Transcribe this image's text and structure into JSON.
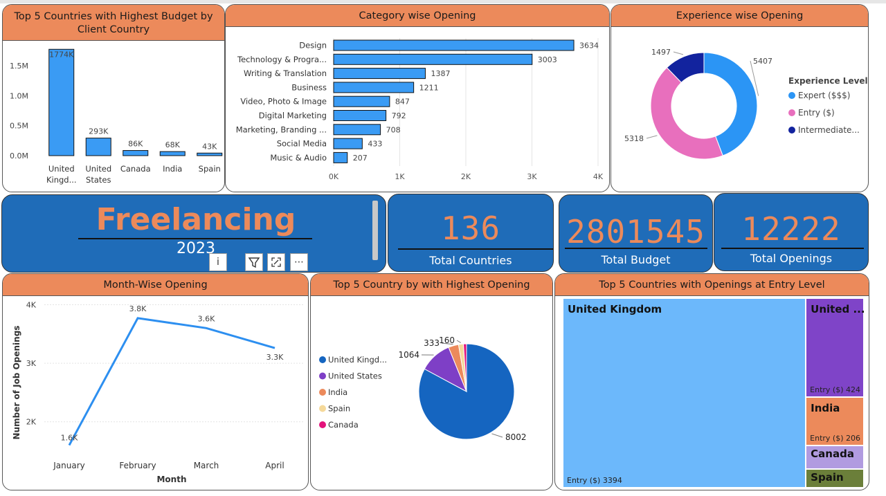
{
  "colors": {
    "header_orange": "#ec8a5b",
    "kpi_blue": "#1f6cb8",
    "bar_blue": "#3a9bf4",
    "expert": "#2b95f5",
    "entry": "#e86fbd",
    "intermediate": "#12239e",
    "line_blue": "#2d8ff0",
    "pie_uk": "#1565c0",
    "pie_us": "#7e3fc6",
    "pie_india": "#ec8a5b",
    "pie_spain": "#f5d99a",
    "pie_canada": "#e3127b",
    "tm_uk": "#6cb8fb",
    "tm_us": "#7f44c8",
    "tm_india": "#ec8a5b",
    "tm_canada": "#b19be0",
    "tm_spain": "#6b7f3a"
  },
  "banner": {
    "title": "Freelancing",
    "year": "2023"
  },
  "toolbar": {
    "info_icon": "info-icon",
    "filter_icon": "filter-icon",
    "focus_icon": "focus-mode-icon",
    "more_icon": "more-options-icon"
  },
  "kpis": {
    "countries": {
      "value": "136",
      "label": "Total Countries"
    },
    "budget": {
      "value": "2801545",
      "label": "Total Budget"
    },
    "openings": {
      "value": "12222",
      "label": "Total Openings"
    }
  },
  "chart_data": [
    {
      "id": "budget",
      "type": "bar",
      "title": "Top 5 Countries with Highest Budget by Client Country",
      "categories": [
        "United Kingd...",
        "United States",
        "Canada",
        "India",
        "Spain"
      ],
      "values": [
        1774000,
        293000,
        86000,
        68000,
        43000
      ],
      "data_labels": [
        "1774K",
        "293K",
        "86K",
        "68K",
        "43K"
      ],
      "y_ticks": [
        0,
        500000,
        1000000,
        1500000
      ],
      "y_tick_labels": [
        "0.0M",
        "0.5M",
        "1.0M",
        "1.5M"
      ],
      "ylim": [
        0,
        1800000
      ],
      "grid": false
    },
    {
      "id": "category",
      "type": "bar",
      "orientation": "horizontal",
      "title": "Category wise Opening",
      "categories": [
        "Design",
        "Technology & Progra...",
        "Writing & Translation",
        "Business",
        "Video, Photo & Image",
        "Digital Marketing",
        "Marketing, Branding ...",
        "Social Media",
        "Music & Audio"
      ],
      "values": [
        3634,
        3003,
        1387,
        1211,
        847,
        792,
        708,
        433,
        207
      ],
      "x_ticks": [
        0,
        1000,
        2000,
        3000,
        4000
      ],
      "x_tick_labels": [
        "0K",
        "1K",
        "2K",
        "3K",
        "4K"
      ],
      "xlim": [
        0,
        4000
      ],
      "grid": true
    },
    {
      "id": "experience",
      "type": "pie",
      "variant": "donut",
      "title": "Experience wise Opening",
      "legend_title": "Experience Level",
      "legend_position": "right",
      "labels": [
        "Expert ($$$)",
        "Entry ($)",
        "Intermediate..."
      ],
      "values": [
        5407,
        5318,
        1497
      ]
    },
    {
      "id": "month",
      "type": "line",
      "title": "Month-Wise Opening",
      "x": [
        "January",
        "February",
        "March",
        "April"
      ],
      "y": [
        1600,
        3770,
        3600,
        3260
      ],
      "data_labels": [
        "1.6K",
        "3.8K",
        "3.6K",
        "3.3K"
      ],
      "xlabel": "Month",
      "ylabel": "Number of Job Openings",
      "y_ticks": [
        2000,
        3000,
        4000
      ],
      "y_tick_labels": [
        "2K",
        "3K",
        "4K"
      ],
      "ylim": [
        1500,
        4100
      ],
      "grid": true
    },
    {
      "id": "country_pie",
      "type": "pie",
      "title": "Top 5 Country by with Highest Opening",
      "legend_position": "left",
      "labels": [
        "United Kingd...",
        "United States",
        "India",
        "Spain",
        "Canada"
      ],
      "values": [
        8002,
        1064,
        333,
        160,
        100
      ],
      "data_labels": [
        "8002",
        "1064",
        "333",
        "160",
        ""
      ]
    },
    {
      "id": "treemap",
      "type": "treemap",
      "title": "Top 5 Countries with Openings at Entry Level",
      "labels": [
        "United Kingdom",
        "United ...",
        "India",
        "Canada",
        "Spain"
      ],
      "values": [
        3394,
        424,
        206,
        100,
        80
      ],
      "value_labels": [
        "Entry ($) 3394",
        "Entry ($) 424",
        "Entry ($) 206",
        "",
        ""
      ]
    }
  ]
}
